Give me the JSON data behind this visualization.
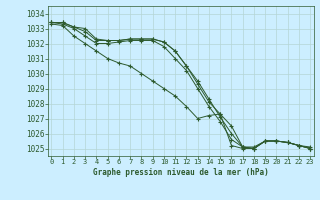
{
  "title": "Graphe pression niveau de la mer (hPa)",
  "bg_color": "#cceeff",
  "grid_color": "#b5d5d5",
  "line_color": "#2d5a2d",
  "ylim": [
    1024.5,
    1034.5
  ],
  "xlim": [
    -0.3,
    23.3
  ],
  "yticks": [
    1025,
    1026,
    1027,
    1028,
    1029,
    1030,
    1031,
    1032,
    1033,
    1034
  ],
  "xticks": [
    0,
    1,
    2,
    3,
    4,
    5,
    6,
    7,
    8,
    9,
    10,
    11,
    12,
    13,
    14,
    15,
    16,
    17,
    18,
    19,
    20,
    21,
    22,
    23
  ],
  "series": [
    [
      1033.4,
      1033.4,
      1033.1,
      1033.0,
      1032.3,
      1032.2,
      1032.2,
      1032.3,
      1032.3,
      1032.3,
      1032.1,
      1031.5,
      1030.5,
      1029.5,
      1028.3,
      1027.1,
      1026.0,
      1025.1,
      1025.1,
      1025.5,
      1025.5,
      1025.4,
      1025.2,
      1025.1
    ],
    [
      1033.4,
      1033.4,
      1033.1,
      1032.8,
      1032.2,
      1032.2,
      1032.2,
      1032.3,
      1032.3,
      1032.3,
      1032.1,
      1031.5,
      1030.5,
      1029.3,
      1028.1,
      1027.3,
      1026.5,
      1025.1,
      1025.0,
      1025.5,
      1025.5,
      1025.4,
      1025.2,
      1025.0
    ],
    [
      1033.4,
      1033.3,
      1033.0,
      1032.5,
      1032.0,
      1032.0,
      1032.1,
      1032.2,
      1032.2,
      1032.2,
      1031.8,
      1031.0,
      1030.2,
      1029.0,
      1027.8,
      1026.8,
      1025.6,
      1025.1,
      1025.0,
      1025.5,
      1025.5,
      1025.4,
      1025.2,
      1025.0
    ],
    [
      1033.3,
      1033.2,
      1032.5,
      1032.0,
      1031.5,
      1031.0,
      1030.7,
      1030.5,
      1030.0,
      1029.5,
      1029.0,
      1028.5,
      1027.8,
      1027.0,
      1027.2,
      1027.3,
      1025.2,
      1025.0,
      1025.0,
      1025.5,
      1025.5,
      1025.4,
      1025.2,
      1025.0
    ]
  ]
}
